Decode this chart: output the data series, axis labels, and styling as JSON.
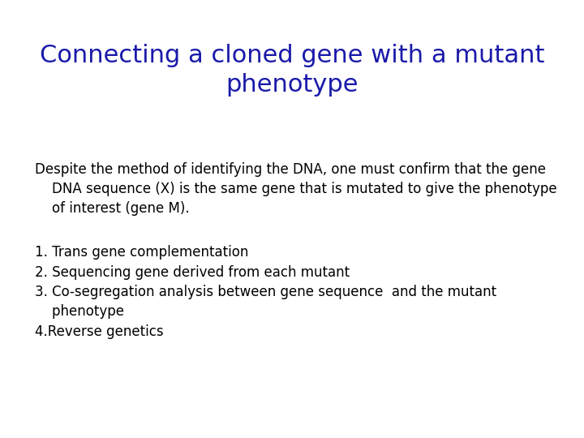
{
  "title_line1": "Connecting a cloned gene with a mutant",
  "title_line2": "phenotype",
  "title_color": "#1a1aaa",
  "title_fontsize": 22,
  "body_fontsize": 12,
  "background_color": "#ffffff",
  "paragraph1_lines": [
    "Despite the method of identifying the DNA, one must confirm that the gene",
    "    DNA sequence (X) is the same gene that is mutated to give the phenotype",
    "    of interest (gene M)."
  ],
  "list_items": [
    "1. Trans gene complementation",
    "2. Sequencing gene derived from each mutant",
    "3. Co-segregation analysis between gene sequence  and the mutant\n    phenotype",
    "4.Reverse genetics"
  ],
  "text_color": "#000000",
  "font_family": "DejaVu Sans"
}
